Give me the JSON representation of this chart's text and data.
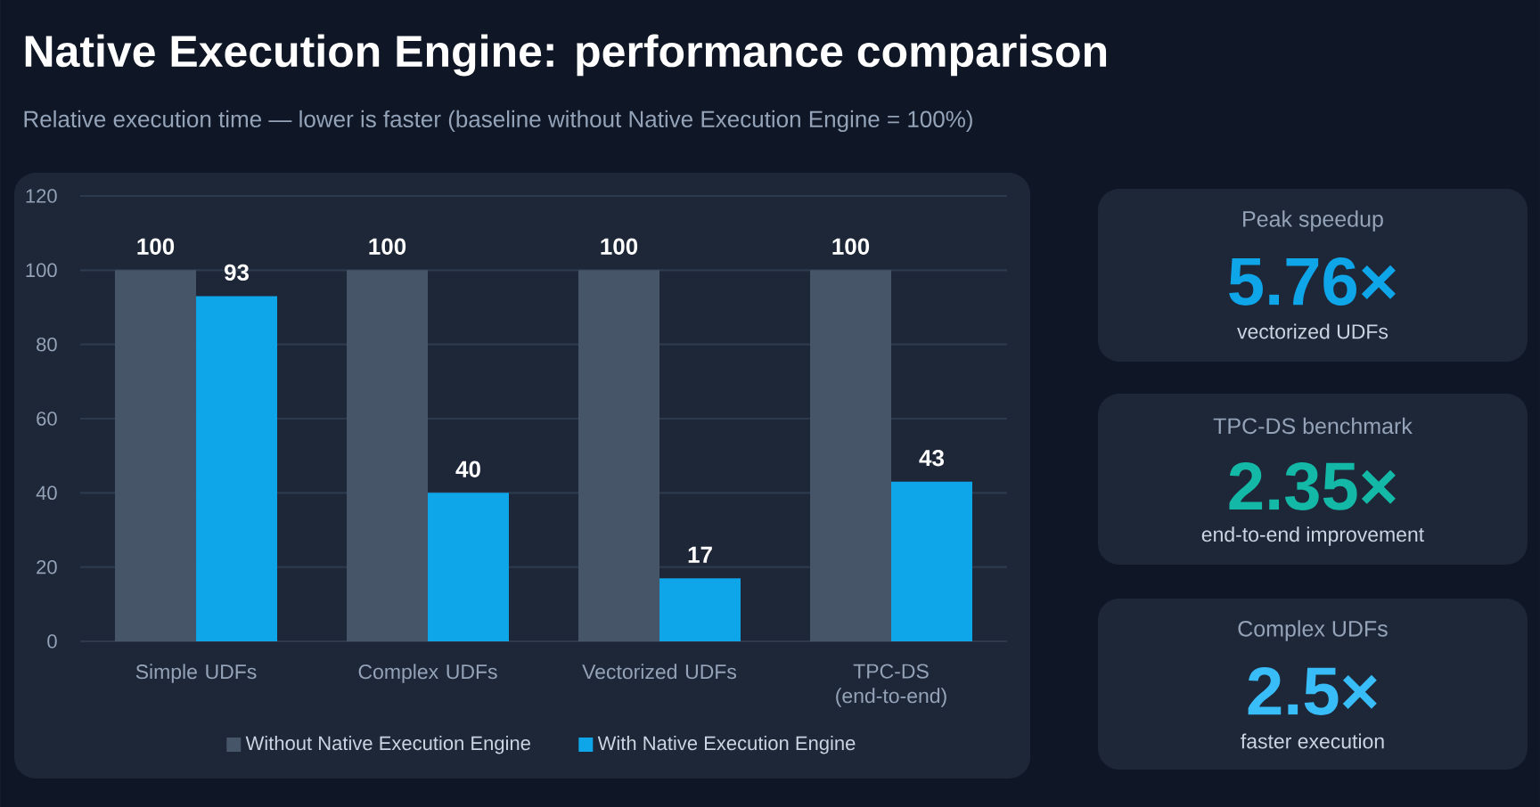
{
  "chart_data": [
    {
      "type": "bar",
      "title": "Native Execution Engine: performance comparison",
      "subtitle": "Relative execution time — lower is faster (baseline without Native Execution Engine = 100%)",
      "categories": [
        "Simple UDFs",
        "Complex UDFs",
        "Vectorized UDFs",
        "TPC-DS (end-to-end)"
      ],
      "series": [
        {
          "name": "Without Native Execution Engine",
          "color": "#475569",
          "values": [
            100,
            100,
            100,
            100
          ]
        },
        {
          "name": "With Native Execution Engine",
          "color": "#0ea5e9",
          "values": [
            93,
            40,
            17,
            43
          ]
        }
      ],
      "ylim": [
        0,
        120
      ],
      "yticks": [
        0,
        20,
        40,
        60,
        80,
        100,
        120
      ],
      "grid": "y",
      "legend": "bottom",
      "data_labels": true
    },
    {
      "type": "other",
      "title": "Peak speedup",
      "annotations": [
        "5.76×",
        "vectorized UDFs"
      ],
      "color": "#0ea5e9"
    },
    {
      "type": "other",
      "title": "TPC-DS benchmark",
      "annotations": [
        "2.35×",
        "end-to-end improvement"
      ],
      "color": "#14b8a6"
    },
    {
      "type": "other",
      "title": "Complex UDFs",
      "annotations": [
        "2.5×",
        "faster execution"
      ],
      "color": "#38bdf8"
    }
  ]
}
